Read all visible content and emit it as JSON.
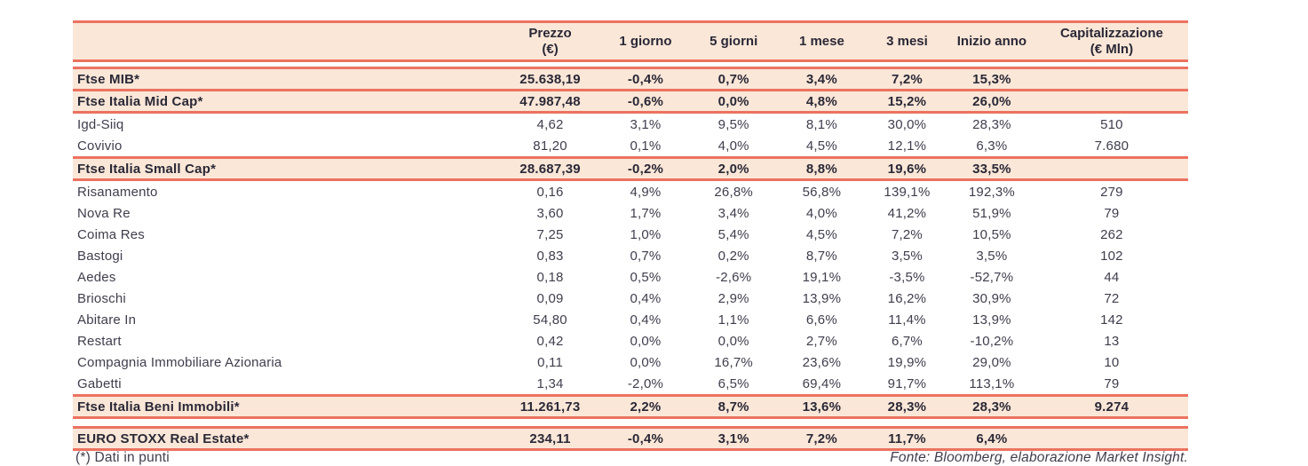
{
  "colors": {
    "line_accent": "#ec7260",
    "band_background": "#fae7d8",
    "text_primary": "#2a2836",
    "text_secondary": "#403d4d"
  },
  "table": {
    "columns": [
      {
        "id": "name",
        "label": ""
      },
      {
        "id": "prezzo",
        "label": "Prezzo",
        "sub": "(€)"
      },
      {
        "id": "1-giorno",
        "label": "1 giorno"
      },
      {
        "id": "5-giorni",
        "label": "5 giorni"
      },
      {
        "id": "1-mese",
        "label": "1 mese"
      },
      {
        "id": "3-mesi",
        "label": "3 mesi"
      },
      {
        "id": "inizio-anno",
        "label": "Inizio anno"
      },
      {
        "id": "capitalizzazione",
        "label": "Capitalizzazione",
        "sub": "(€ Mln)"
      }
    ],
    "rows": [
      {
        "name": "Ftse MIB*",
        "style": "index",
        "values": [
          "25.638,19",
          "-0,4%",
          "0,7%",
          "3,4%",
          "7,2%",
          "15,3%",
          ""
        ]
      },
      {
        "name": "Ftse Italia Mid Cap*",
        "style": "index",
        "values": [
          "47.987,48",
          "-0,6%",
          "0,0%",
          "4,8%",
          "15,2%",
          "26,0%",
          ""
        ]
      },
      {
        "name": "Igd-Siiq",
        "style": "stock",
        "values": [
          "4,62",
          "3,1%",
          "9,5%",
          "8,1%",
          "30,0%",
          "28,3%",
          "510"
        ]
      },
      {
        "name": "Covivio",
        "style": "stock",
        "values": [
          "81,20",
          "0,1%",
          "4,0%",
          "4,5%",
          "12,1%",
          "6,3%",
          "7.680"
        ]
      },
      {
        "name": "Ftse Italia Small Cap*",
        "style": "index",
        "values": [
          "28.687,39",
          "-0,2%",
          "2,0%",
          "8,8%",
          "19,6%",
          "33,5%",
          ""
        ]
      },
      {
        "name": "Risanamento",
        "style": "stock",
        "values": [
          "0,16",
          "4,9%",
          "26,8%",
          "56,8%",
          "139,1%",
          "192,3%",
          "279"
        ]
      },
      {
        "name": "Nova Re",
        "style": "stock",
        "values": [
          "3,60",
          "1,7%",
          "3,4%",
          "4,0%",
          "41,2%",
          "51,9%",
          "79"
        ]
      },
      {
        "name": "Coima Res",
        "style": "stock",
        "values": [
          "7,25",
          "1,0%",
          "5,4%",
          "4,5%",
          "7,2%",
          "10,5%",
          "262"
        ]
      },
      {
        "name": "Bastogi",
        "style": "stock",
        "values": [
          "0,83",
          "0,7%",
          "0,2%",
          "8,7%",
          "3,5%",
          "3,5%",
          "102"
        ]
      },
      {
        "name": "Aedes",
        "style": "stock",
        "values": [
          "0,18",
          "0,5%",
          "-2,6%",
          "19,1%",
          "-3,5%",
          "-52,7%",
          "44"
        ]
      },
      {
        "name": "Brioschi",
        "style": "stock",
        "values": [
          "0,09",
          "0,4%",
          "2,9%",
          "13,9%",
          "16,2%",
          "30,9%",
          "72"
        ]
      },
      {
        "name": "Abitare In",
        "style": "stock",
        "values": [
          "54,80",
          "0,4%",
          "1,1%",
          "6,6%",
          "11,4%",
          "13,9%",
          "142"
        ]
      },
      {
        "name": "Restart",
        "style": "stock",
        "values": [
          "0,42",
          "0,0%",
          "0,0%",
          "2,7%",
          "6,7%",
          "-10,2%",
          "13"
        ]
      },
      {
        "name": "Compagnia Immobiliare Azionaria",
        "style": "stock",
        "values": [
          "0,11",
          "0,0%",
          "16,7%",
          "23,6%",
          "19,9%",
          "29,0%",
          "10"
        ]
      },
      {
        "name": "Gabetti",
        "style": "stock",
        "values": [
          "1,34",
          "-2,0%",
          "6,5%",
          "69,4%",
          "91,7%",
          "113,1%",
          "79"
        ]
      },
      {
        "name": "Ftse Italia Beni Immobili*",
        "style": "index",
        "values": [
          "11.261,73",
          "2,2%",
          "8,7%",
          "13,6%",
          "28,3%",
          "28,3%",
          "9.274"
        ]
      },
      {
        "name": "EURO STOXX Real Estate*",
        "style": "index",
        "gap_before": true,
        "values": [
          "234,11",
          "-0,4%",
          "3,1%",
          "7,2%",
          "11,7%",
          "6,4%",
          ""
        ]
      }
    ]
  },
  "footer": {
    "note": "(*) Dati in punti",
    "source": "Fonte: Bloomberg, elaborazione Market Insight."
  }
}
